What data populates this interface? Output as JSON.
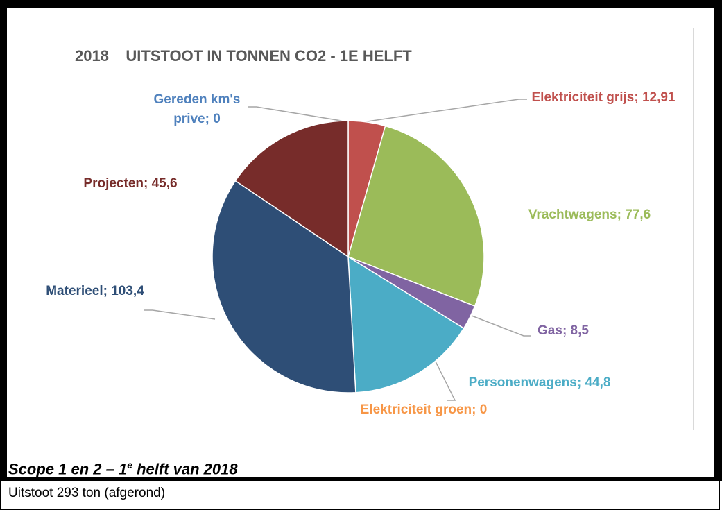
{
  "chart_data": {
    "type": "pie",
    "title": "2018    UITSTOOT IN TONNEN CO2 - 1E HELFT",
    "labels": [
      "Elektriciteit grijs; 12,91",
      "Vrachtwagens; 77,6",
      "Gas; 8,5",
      "Personenwagens; 44,8",
      "Elektriciteit groen; 0",
      "Materieel; 103,4",
      "Projecten; 45,6",
      "Gereden km's prive; 0"
    ],
    "values": [
      12.91,
      77.6,
      8.5,
      44.8,
      0,
      103.4,
      45.6,
      0
    ],
    "colors": [
      "#c0504d",
      "#9bbb59",
      "#8064a2",
      "#4bacc6",
      "#f79646",
      "#2e4e76",
      "#772c2a",
      "#4f81bd"
    ]
  },
  "caption": [
    "Scope 1 en 2 – 1",
    "e",
    " helft van 2018"
  ],
  "footer": "Uitstoot 293 ton (afgerond)"
}
